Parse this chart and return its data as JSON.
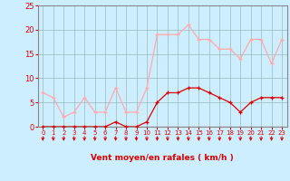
{
  "x": [
    0,
    1,
    2,
    3,
    4,
    5,
    6,
    7,
    8,
    9,
    10,
    11,
    12,
    13,
    14,
    15,
    16,
    17,
    18,
    19,
    20,
    21,
    22,
    23
  ],
  "rafales": [
    7,
    6,
    2,
    3,
    6,
    3,
    3,
    8,
    3,
    3,
    8,
    19,
    19,
    19,
    21,
    18,
    18,
    16,
    16,
    14,
    18,
    18,
    13,
    18
  ],
  "moyen": [
    0,
    0,
    0,
    0,
    0,
    0,
    0,
    1,
    0,
    0,
    1,
    5,
    7,
    7,
    8,
    8,
    7,
    6,
    5,
    3,
    5,
    6,
    6,
    6
  ],
  "color_rafales": "#ffaaaa",
  "color_moyen": "#dd0000",
  "bg_color": "#cceeff",
  "grid_color": "#99bbbb",
  "xlabel": "Vent moyen/en rafales ( km/h )",
  "xlabel_color": "#dd0000",
  "tick_color": "#dd0000",
  "ylim": [
    0,
    25
  ],
  "yticks": [
    0,
    5,
    10,
    15,
    20,
    25
  ],
  "arrow_color": "#dd0000",
  "spine_color": "#888888"
}
